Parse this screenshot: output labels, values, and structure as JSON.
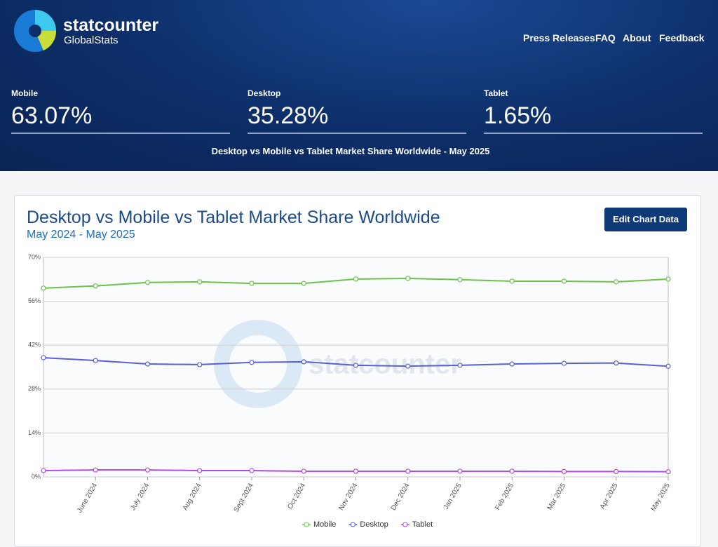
{
  "header": {
    "logo_name": "statcounter",
    "logo_sub": "GlobalStats",
    "nav": [
      "Press Releases",
      "FAQ",
      "About",
      "Feedback"
    ],
    "stats": [
      {
        "label": "Mobile",
        "value": "63.07%"
      },
      {
        "label": "Desktop",
        "value": "35.28%"
      },
      {
        "label": "Tablet",
        "value": "1.65%"
      }
    ],
    "caption": "Desktop vs Mobile vs Tablet Market Share Worldwide - May 2025"
  },
  "button": "Edit Chart Data",
  "chart_data": {
    "type": "line",
    "title": "Desktop vs Mobile vs Tablet Market Share Worldwide",
    "subtitle": "May 2024 - May 2025",
    "watermark": "statcounter",
    "categories": [
      null,
      "June 2024",
      "July 2024",
      "Aug 2024",
      "Sept 2024",
      "Oct 2024",
      "Nov 2024",
      "Dec 2024",
      "Jan 2025",
      "Feb 2025",
      "Mar 2025",
      "Apr 2025",
      "May 2025"
    ],
    "series": [
      {
        "name": "Mobile",
        "color": "#6cc24a",
        "values": [
          60.2,
          60.9,
          62.0,
          62.2,
          61.7,
          61.7,
          63.1,
          63.3,
          62.9,
          62.4,
          62.4,
          62.2,
          63.07
        ]
      },
      {
        "name": "Desktop",
        "color": "#5a5fd6",
        "values": [
          38.0,
          37.1,
          36.0,
          35.8,
          36.5,
          36.7,
          35.6,
          35.3,
          35.6,
          36.0,
          36.2,
          36.3,
          35.28
        ]
      },
      {
        "name": "Tablet",
        "color": "#b14ce0",
        "values": [
          2.0,
          2.2,
          2.2,
          2.0,
          2.0,
          1.8,
          1.8,
          1.8,
          1.8,
          1.8,
          1.7,
          1.7,
          1.65
        ]
      }
    ],
    "ylim": [
      0,
      70
    ],
    "yticks": [
      {
        "value": 0,
        "label": "0%"
      },
      {
        "value": 14,
        "label": "14%"
      },
      {
        "value": 28,
        "label": "28%"
      },
      {
        "value": 42,
        "label": "42%"
      },
      {
        "value": 56,
        "label": "56%"
      },
      {
        "value": 70,
        "label": "70%"
      }
    ],
    "grid": true,
    "legend": "bottom"
  }
}
